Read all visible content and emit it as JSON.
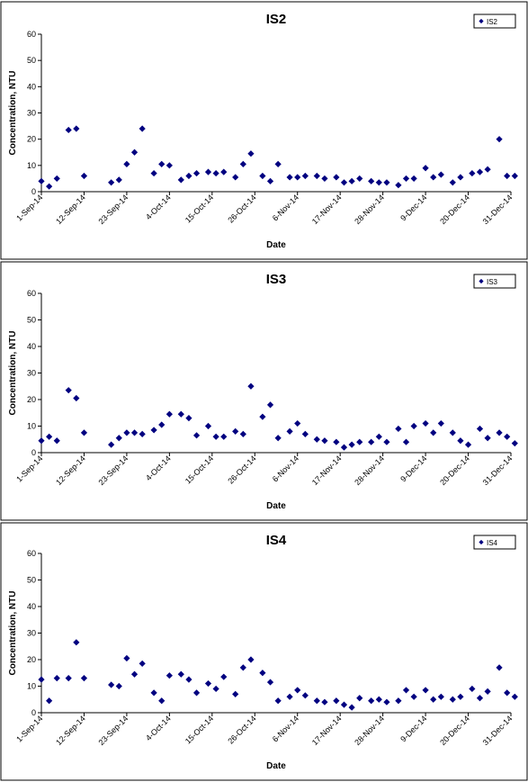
{
  "chart_data": [
    {
      "type": "scatter",
      "title": "IS2",
      "xlabel": "Date",
      "ylabel": "Concentration, NTU",
      "ylim": [
        0,
        60
      ],
      "yticks": [
        0,
        10,
        20,
        30,
        40,
        50,
        60
      ],
      "xlim": [
        "2014-09-01",
        "2014-12-31"
      ],
      "xtick_labels": [
        "1-Sep-14",
        "12-Sep-14",
        "23-Sep-14",
        "4-Oct-14",
        "15-Oct-14",
        "26-Oct-14",
        "6-Nov-14",
        "17-Nov-14",
        "28-Nov-14",
        "9-Dec-14",
        "20-Dec-14",
        "31-Dec-14"
      ],
      "legend": "top-right",
      "series": [
        {
          "name": "IS2",
          "color": "#000080",
          "points": [
            {
              "x": "2014-09-01",
              "y": 4
            },
            {
              "x": "2014-09-03",
              "y": 2
            },
            {
              "x": "2014-09-05",
              "y": 5
            },
            {
              "x": "2014-09-08",
              "y": 23.5
            },
            {
              "x": "2014-09-10",
              "y": 24
            },
            {
              "x": "2014-09-12",
              "y": 6
            },
            {
              "x": "2014-09-19",
              "y": 3.5
            },
            {
              "x": "2014-09-21",
              "y": 4.5
            },
            {
              "x": "2014-09-23",
              "y": 10.5
            },
            {
              "x": "2014-09-25",
              "y": 15
            },
            {
              "x": "2014-09-27",
              "y": 24
            },
            {
              "x": "2014-09-30",
              "y": 7
            },
            {
              "x": "2014-10-02",
              "y": 10.5
            },
            {
              "x": "2014-10-04",
              "y": 10
            },
            {
              "x": "2014-10-07",
              "y": 4.5
            },
            {
              "x": "2014-10-09",
              "y": 6
            },
            {
              "x": "2014-10-11",
              "y": 7
            },
            {
              "x": "2014-10-14",
              "y": 7.5
            },
            {
              "x": "2014-10-16",
              "y": 7
            },
            {
              "x": "2014-10-18",
              "y": 7.5
            },
            {
              "x": "2014-10-21",
              "y": 5.5
            },
            {
              "x": "2014-10-23",
              "y": 10.5
            },
            {
              "x": "2014-10-25",
              "y": 14.5
            },
            {
              "x": "2014-10-28",
              "y": 6
            },
            {
              "x": "2014-10-30",
              "y": 4
            },
            {
              "x": "2014-11-01",
              "y": 10.5
            },
            {
              "x": "2014-11-04",
              "y": 5.5
            },
            {
              "x": "2014-11-06",
              "y": 5.5
            },
            {
              "x": "2014-11-08",
              "y": 6
            },
            {
              "x": "2014-11-11",
              "y": 6
            },
            {
              "x": "2014-11-13",
              "y": 5
            },
            {
              "x": "2014-11-16",
              "y": 5.5
            },
            {
              "x": "2014-11-18",
              "y": 3.5
            },
            {
              "x": "2014-11-20",
              "y": 4
            },
            {
              "x": "2014-11-22",
              "y": 5
            },
            {
              "x": "2014-11-25",
              "y": 4
            },
            {
              "x": "2014-11-27",
              "y": 3.5
            },
            {
              "x": "2014-11-29",
              "y": 3.5
            },
            {
              "x": "2014-12-02",
              "y": 2.5
            },
            {
              "x": "2014-12-04",
              "y": 5
            },
            {
              "x": "2014-12-06",
              "y": 5
            },
            {
              "x": "2014-12-09",
              "y": 9
            },
            {
              "x": "2014-12-11",
              "y": 5.5
            },
            {
              "x": "2014-12-13",
              "y": 6.5
            },
            {
              "x": "2014-12-16",
              "y": 3.5
            },
            {
              "x": "2014-12-18",
              "y": 5.5
            },
            {
              "x": "2014-12-21",
              "y": 7
            },
            {
              "x": "2014-12-23",
              "y": 7.5
            },
            {
              "x": "2014-12-25",
              "y": 8.5
            },
            {
              "x": "2014-12-28",
              "y": 20
            },
            {
              "x": "2014-12-30",
              "y": 6
            },
            {
              "x": "2015-01-01",
              "y": 6
            }
          ]
        }
      ]
    },
    {
      "type": "scatter",
      "title": "IS3",
      "xlabel": "Date",
      "ylabel": "Concentration, NTU",
      "ylim": [
        0,
        60
      ],
      "yticks": [
        0,
        10,
        20,
        30,
        40,
        50,
        60
      ],
      "xlim": [
        "2014-09-01",
        "2014-12-31"
      ],
      "xtick_labels": [
        "1-Sep-14",
        "12-Sep-14",
        "23-Sep-14",
        "4-Oct-14",
        "15-Oct-14",
        "26-Oct-14",
        "6-Nov-14",
        "17-Nov-14",
        "28-Nov-14",
        "9-Dec-14",
        "20-Dec-14",
        "31-Dec-14"
      ],
      "legend": "top-right",
      "series": [
        {
          "name": "IS3",
          "color": "#000080",
          "points": [
            {
              "x": "2014-09-01",
              "y": 4.5
            },
            {
              "x": "2014-09-03",
              "y": 6
            },
            {
              "x": "2014-09-05",
              "y": 4.5
            },
            {
              "x": "2014-09-08",
              "y": 23.5
            },
            {
              "x": "2014-09-10",
              "y": 20.5
            },
            {
              "x": "2014-09-12",
              "y": 7.5
            },
            {
              "x": "2014-09-19",
              "y": 3
            },
            {
              "x": "2014-09-21",
              "y": 5.5
            },
            {
              "x": "2014-09-23",
              "y": 7.5
            },
            {
              "x": "2014-09-25",
              "y": 7.5
            },
            {
              "x": "2014-09-27",
              "y": 7
            },
            {
              "x": "2014-09-30",
              "y": 8.5
            },
            {
              "x": "2014-10-02",
              "y": 10.5
            },
            {
              "x": "2014-10-04",
              "y": 14.5
            },
            {
              "x": "2014-10-07",
              "y": 14.5
            },
            {
              "x": "2014-10-09",
              "y": 13
            },
            {
              "x": "2014-10-11",
              "y": 6.5
            },
            {
              "x": "2014-10-14",
              "y": 10
            },
            {
              "x": "2014-10-16",
              "y": 6
            },
            {
              "x": "2014-10-18",
              "y": 6
            },
            {
              "x": "2014-10-21",
              "y": 8
            },
            {
              "x": "2014-10-23",
              "y": 7
            },
            {
              "x": "2014-10-25",
              "y": 25
            },
            {
              "x": "2014-10-28",
              "y": 13.5
            },
            {
              "x": "2014-10-30",
              "y": 18
            },
            {
              "x": "2014-11-01",
              "y": 5.5
            },
            {
              "x": "2014-11-04",
              "y": 8
            },
            {
              "x": "2014-11-06",
              "y": 11
            },
            {
              "x": "2014-11-08",
              "y": 7
            },
            {
              "x": "2014-11-11",
              "y": 5
            },
            {
              "x": "2014-11-13",
              "y": 4.5
            },
            {
              "x": "2014-11-16",
              "y": 4
            },
            {
              "x": "2014-11-18",
              "y": 2
            },
            {
              "x": "2014-11-20",
              "y": 3
            },
            {
              "x": "2014-11-22",
              "y": 4
            },
            {
              "x": "2014-11-25",
              "y": 4
            },
            {
              "x": "2014-11-27",
              "y": 6
            },
            {
              "x": "2014-11-29",
              "y": 4
            },
            {
              "x": "2014-12-02",
              "y": 9
            },
            {
              "x": "2014-12-04",
              "y": 4
            },
            {
              "x": "2014-12-06",
              "y": 10
            },
            {
              "x": "2014-12-09",
              "y": 11
            },
            {
              "x": "2014-12-11",
              "y": 7.5
            },
            {
              "x": "2014-12-13",
              "y": 11
            },
            {
              "x": "2014-12-16",
              "y": 7.5
            },
            {
              "x": "2014-12-18",
              "y": 4.5
            },
            {
              "x": "2014-12-20",
              "y": 3
            },
            {
              "x": "2014-12-23",
              "y": 9
            },
            {
              "x": "2014-12-25",
              "y": 5.5
            },
            {
              "x": "2014-12-28",
              "y": 7.5
            },
            {
              "x": "2014-12-30",
              "y": 6
            },
            {
              "x": "2015-01-01",
              "y": 3.5
            }
          ]
        }
      ]
    },
    {
      "type": "scatter",
      "title": "IS4",
      "xlabel": "Date",
      "ylabel": "Concentration, NTU",
      "ylim": [
        0,
        60
      ],
      "yticks": [
        0,
        10,
        20,
        30,
        40,
        50,
        60
      ],
      "xlim": [
        "2014-09-01",
        "2014-12-31"
      ],
      "xtick_labels": [
        "1-Sep-14",
        "12-Sep-14",
        "23-Sep-14",
        "4-Oct-14",
        "15-Oct-14",
        "26-Oct-14",
        "6-Nov-14",
        "17-Nov-14",
        "28-Nov-14",
        "9-Dec-14",
        "20-Dec-14",
        "31-Dec-14"
      ],
      "legend": "top-right",
      "series": [
        {
          "name": "IS4",
          "color": "#000080",
          "points": [
            {
              "x": "2014-09-01",
              "y": 12.5
            },
            {
              "x": "2014-09-03",
              "y": 4.5
            },
            {
              "x": "2014-09-05",
              "y": 13
            },
            {
              "x": "2014-09-08",
              "y": 13
            },
            {
              "x": "2014-09-10",
              "y": 26.5
            },
            {
              "x": "2014-09-12",
              "y": 13
            },
            {
              "x": "2014-09-19",
              "y": 10.5
            },
            {
              "x": "2014-09-21",
              "y": 10
            },
            {
              "x": "2014-09-23",
              "y": 20.5
            },
            {
              "x": "2014-09-25",
              "y": 14.5
            },
            {
              "x": "2014-09-27",
              "y": 18.5
            },
            {
              "x": "2014-09-30",
              "y": 7.5
            },
            {
              "x": "2014-10-02",
              "y": 4.5
            },
            {
              "x": "2014-10-04",
              "y": 14
            },
            {
              "x": "2014-10-07",
              "y": 14.5
            },
            {
              "x": "2014-10-09",
              "y": 12.5
            },
            {
              "x": "2014-10-11",
              "y": 7.5
            },
            {
              "x": "2014-10-14",
              "y": 11
            },
            {
              "x": "2014-10-16",
              "y": 9
            },
            {
              "x": "2014-10-18",
              "y": 13.5
            },
            {
              "x": "2014-10-21",
              "y": 7
            },
            {
              "x": "2014-10-23",
              "y": 17
            },
            {
              "x": "2014-10-25",
              "y": 20
            },
            {
              "x": "2014-10-28",
              "y": 15
            },
            {
              "x": "2014-10-30",
              "y": 11.5
            },
            {
              "x": "2014-11-01",
              "y": 4.5
            },
            {
              "x": "2014-11-04",
              "y": 6
            },
            {
              "x": "2014-11-06",
              "y": 8.5
            },
            {
              "x": "2014-11-08",
              "y": 6.5
            },
            {
              "x": "2014-11-11",
              "y": 4.5
            },
            {
              "x": "2014-11-13",
              "y": 4
            },
            {
              "x": "2014-11-16",
              "y": 4.5
            },
            {
              "x": "2014-11-18",
              "y": 3
            },
            {
              "x": "2014-11-20",
              "y": 2
            },
            {
              "x": "2014-11-22",
              "y": 5.5
            },
            {
              "x": "2014-11-25",
              "y": 4.5
            },
            {
              "x": "2014-11-27",
              "y": 5
            },
            {
              "x": "2014-11-29",
              "y": 4
            },
            {
              "x": "2014-12-02",
              "y": 4.5
            },
            {
              "x": "2014-12-04",
              "y": 8.5
            },
            {
              "x": "2014-12-06",
              "y": 6
            },
            {
              "x": "2014-12-09",
              "y": 8.5
            },
            {
              "x": "2014-12-11",
              "y": 5
            },
            {
              "x": "2014-12-13",
              "y": 6
            },
            {
              "x": "2014-12-16",
              "y": 5
            },
            {
              "x": "2014-12-18",
              "y": 6
            },
            {
              "x": "2014-12-21",
              "y": 9
            },
            {
              "x": "2014-12-23",
              "y": 5.5
            },
            {
              "x": "2014-12-25",
              "y": 8
            },
            {
              "x": "2014-12-28",
              "y": 17
            },
            {
              "x": "2014-12-30",
              "y": 7.5
            },
            {
              "x": "2015-01-01",
              "y": 6
            }
          ]
        }
      ]
    }
  ]
}
